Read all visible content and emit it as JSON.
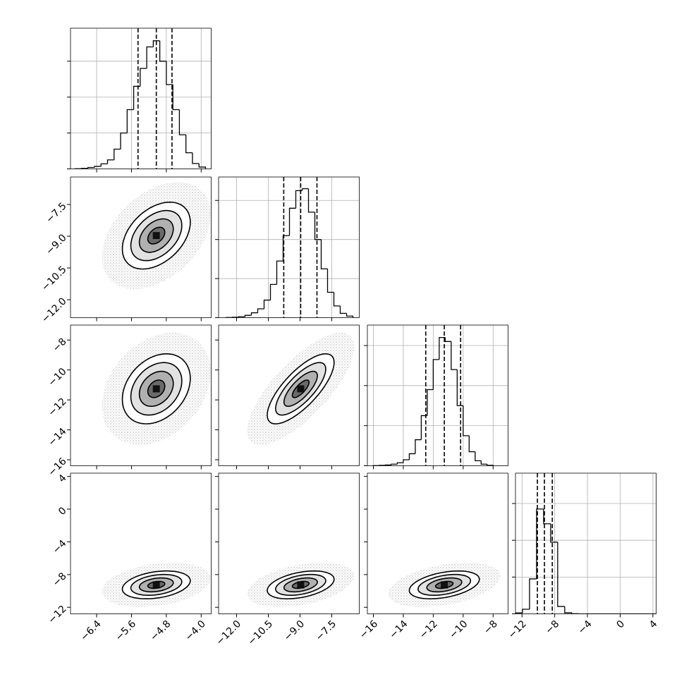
{
  "chart_data": {
    "type": "corner",
    "parameters": [
      {
        "lim": [
          -7.0,
          -3.77
        ],
        "ticks": [
          {
            "value": -6.4,
            "label": "−6.4"
          },
          {
            "value": -5.6,
            "label": "−5.6"
          },
          {
            "value": -4.8,
            "label": "−4.8"
          },
          {
            "value": -4.0,
            "label": "−4.0"
          }
        ],
        "mean": -5.03,
        "sigma": 0.39,
        "quantiles": [
          -5.45,
          -5.03,
          -4.67
        ],
        "bins": [
          -6.9,
          -6.75,
          -6.6,
          -6.45,
          -6.3,
          -6.15,
          -6.0,
          -5.85,
          -5.7,
          -5.55,
          -5.4,
          -5.25,
          -5.1,
          -4.95,
          -4.8,
          -4.65,
          -4.5,
          -4.35,
          -4.2,
          -4.05,
          -3.9
        ],
        "counts": [
          1,
          3,
          8,
          14,
          28,
          50,
          110,
          200,
          330,
          460,
          560,
          680,
          714,
          600,
          470,
          330,
          190,
          90,
          30,
          10
        ],
        "ylim": [
          0,
          784
        ],
        "yticks": [
          0,
          200,
          400,
          600
        ]
      },
      {
        "lim": [
          -12.85,
          -6.2
        ],
        "ticks": [
          {
            "value": -12.0,
            "label": "−12.0"
          },
          {
            "value": -10.5,
            "label": "−10.5"
          },
          {
            "value": -9.0,
            "label": "−9.0"
          },
          {
            "value": -7.5,
            "label": "−7.5"
          }
        ],
        "mean": -8.97,
        "sigma": 0.79,
        "quantiles": [
          -9.77,
          -8.97,
          -8.2
        ],
        "bins": [
          -12.5,
          -12.2,
          -11.9,
          -11.6,
          -11.3,
          -11.0,
          -10.7,
          -10.4,
          -10.1,
          -9.8,
          -9.5,
          -9.2,
          -8.9,
          -8.6,
          -8.3,
          -8.0,
          -7.7,
          -7.4,
          -7.1,
          -6.8,
          -6.5
        ],
        "counts": [
          1,
          2,
          5,
          12,
          25,
          45,
          90,
          170,
          290,
          420,
          560,
          650,
          660,
          540,
          400,
          250,
          130,
          60,
          22,
          8
        ],
        "ylim": [
          0,
          720
        ],
        "yticks": [
          0,
          200,
          400,
          600
        ]
      },
      {
        "lim": [
          -16.4,
          -7.0
        ],
        "ticks": [
          {
            "value": -16,
            "label": "−16"
          },
          {
            "value": -14,
            "label": "−14"
          },
          {
            "value": -12,
            "label": "−12"
          },
          {
            "value": -10,
            "label": "−10"
          },
          {
            "value": -8,
            "label": "−8"
          }
        ],
        "mean": -11.26,
        "sigma": 1.17,
        "quantiles": [
          -12.5,
          -11.26,
          -10.17
        ],
        "bins": [
          -16,
          -15.6,
          -15.2,
          -14.8,
          -14.4,
          -14.0,
          -13.6,
          -13.2,
          -12.8,
          -12.4,
          -12.0,
          -11.6,
          -11.2,
          -10.8,
          -10.4,
          -10.0,
          -9.6,
          -9.2,
          -8.8,
          -8.4,
          -8.0
        ],
        "counts": [
          1,
          2,
          4,
          8,
          15,
          30,
          60,
          130,
          250,
          380,
          530,
          640,
          620,
          480,
          300,
          150,
          70,
          25,
          8,
          2
        ],
        "ylim": [
          0,
          702
        ],
        "yticks": [
          0,
          200,
          400,
          600
        ]
      },
      {
        "lim": [
          -12.8,
          4.4
        ],
        "ticks": [
          {
            "value": -12,
            "label": "−12"
          },
          {
            "value": -8,
            "label": "−8"
          },
          {
            "value": -4,
            "label": "−4"
          },
          0,
          4
        ],
        "mean": -9.26,
        "sigma": 0.85,
        "quantiles": [
          -10.12,
          -9.26,
          -8.3
        ],
        "bins": [
          -12.8,
          -11.94,
          -11.08,
          -10.22,
          -9.36,
          -8.5,
          -7.64,
          -6.78,
          -5.92,
          -5.06,
          -4.2,
          -3.34,
          -2.48,
          -1.62,
          -0.76,
          0.1,
          0.96,
          1.82,
          2.68,
          3.54,
          4.4
        ],
        "counts": [
          5,
          25,
          190,
          570,
          490,
          390,
          40,
          6,
          1,
          0,
          0,
          0,
          0,
          0,
          0,
          0,
          0,
          0,
          0,
          0
        ],
        "ylim": [
          0,
          765
        ],
        "yticks": [
          0,
          200,
          400,
          600
        ]
      }
    ],
    "correlations": [
      [],
      [
        0.4
      ],
      [
        0.3,
        0.75
      ],
      [
        0.3,
        0.4,
        0.4
      ]
    ],
    "contour_levels": [
      0.5,
      1,
      1.5,
      2
    ],
    "grid": true,
    "color": "#000000"
  }
}
